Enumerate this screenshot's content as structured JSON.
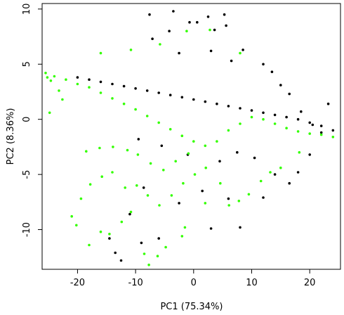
{
  "chart_data": {
    "type": "scatter",
    "title": "",
    "xlabel": "PC1 (75.34%)",
    "ylabel": "PC2 (8.36%)",
    "xlim": [
      -26.1,
      25.3
    ],
    "ylim": [
      -13.6,
      10.5
    ],
    "xticks": [
      -20,
      -10,
      0,
      10,
      20
    ],
    "yticks": [
      -10,
      -5,
      0,
      5,
      10
    ],
    "grid": false,
    "legend": "none",
    "series": [
      {
        "color": "#000000",
        "points": [
          [
            -20,
            3.8
          ],
          [
            -18,
            3.6
          ],
          [
            -16,
            3.4
          ],
          [
            -14,
            3.2
          ],
          [
            -12,
            3.0
          ],
          [
            -10,
            2.8
          ],
          [
            -8,
            2.6
          ],
          [
            -6,
            2.4
          ],
          [
            -4,
            2.2
          ],
          [
            -2,
            2.0
          ],
          [
            0,
            1.8
          ],
          [
            2,
            1.6
          ],
          [
            4,
            1.4
          ],
          [
            6,
            1.2
          ],
          [
            8,
            1.0
          ],
          [
            10,
            0.8
          ],
          [
            12,
            0.6
          ],
          [
            14,
            0.4
          ],
          [
            16,
            0.2
          ],
          [
            18,
            0.0
          ],
          [
            20,
            -0.3
          ],
          [
            22,
            -0.6
          ],
          [
            24,
            -1.0
          ],
          [
            -7.6,
            9.5
          ],
          [
            -3.5,
            9.8
          ],
          [
            2.5,
            9.3
          ],
          [
            5.3,
            9.5
          ],
          [
            -7.1,
            7.3
          ],
          [
            -4.2,
            8.0
          ],
          [
            0.6,
            8.8
          ],
          [
            3.6,
            8.1
          ],
          [
            5.6,
            8.5
          ],
          [
            -0.7,
            8.8
          ],
          [
            -2.5,
            6.0
          ],
          [
            3.0,
            6.2
          ],
          [
            6.5,
            5.3
          ],
          [
            8.5,
            6.3
          ],
          [
            12.0,
            5.0
          ],
          [
            13.5,
            4.3
          ],
          [
            15.0,
            3.1
          ],
          [
            16.5,
            2.3
          ],
          [
            18.5,
            0.7
          ],
          [
            20.5,
            -0.5
          ],
          [
            22.0,
            -1.2
          ],
          [
            23.2,
            1.4
          ],
          [
            20.0,
            -3.2
          ],
          [
            18.0,
            -4.8
          ],
          [
            16.5,
            -5.8
          ],
          [
            14.0,
            -5.0
          ],
          [
            12.0,
            -7.1
          ],
          [
            8.0,
            -9.8
          ],
          [
            6.0,
            -7.2
          ],
          [
            3.0,
            -9.9
          ],
          [
            1.5,
            -6.5
          ],
          [
            -2.5,
            -7.6
          ],
          [
            -6.0,
            -10.8
          ],
          [
            -9.0,
            -11.2
          ],
          [
            -12.5,
            -12.8
          ],
          [
            -13.5,
            -12.1
          ],
          [
            -8.6,
            -6.2
          ],
          [
            -11.0,
            -8.6
          ],
          [
            -14.5,
            -10.8
          ],
          [
            10.5,
            -3.5
          ],
          [
            7.5,
            -3.0
          ],
          [
            4.5,
            -3.8
          ],
          [
            -1.0,
            -3.2
          ],
          [
            -5.5,
            -2.4
          ],
          [
            -9.5,
            -1.8
          ]
        ]
      },
      {
        "color": "#33ff00",
        "points": [
          [
            -25.5,
            4.2
          ],
          [
            -24.0,
            3.9
          ],
          [
            -22.0,
            3.6
          ],
          [
            -20.0,
            3.2
          ],
          [
            -18.0,
            2.9
          ],
          [
            -16.0,
            2.4
          ],
          [
            -14.0,
            1.9
          ],
          [
            -12.0,
            1.4
          ],
          [
            -10.0,
            0.9
          ],
          [
            -8.0,
            0.3
          ],
          [
            -6.0,
            -0.3
          ],
          [
            -4.0,
            -0.9
          ],
          [
            -2.0,
            -1.5
          ],
          [
            0.0,
            -2.0
          ],
          [
            2.0,
            -2.4
          ],
          [
            4.0,
            -2.0
          ],
          [
            6.0,
            -1.0
          ],
          [
            8.0,
            -0.4
          ],
          [
            10.0,
            0.2
          ],
          [
            12.0,
            0.0
          ],
          [
            14.0,
            -0.4
          ],
          [
            16.0,
            -0.8
          ],
          [
            18.0,
            -1.1
          ],
          [
            20.0,
            -1.3
          ],
          [
            22.0,
            -1.4
          ],
          [
            24.0,
            -1.6
          ],
          [
            -21.0,
            -8.8
          ],
          [
            -20.2,
            -9.6
          ],
          [
            -18.0,
            -11.4
          ],
          [
            -16.0,
            -10.2
          ],
          [
            -14.5,
            -10.4
          ],
          [
            -12.4,
            -9.3
          ],
          [
            -10.8,
            -8.4
          ],
          [
            -8.5,
            -12.2
          ],
          [
            -7.7,
            -13.2
          ],
          [
            -6.2,
            -12.4
          ],
          [
            -4.8,
            -11.6
          ],
          [
            -2.0,
            -10.6
          ],
          [
            -1.5,
            -9.8
          ],
          [
            2.0,
            -7.6
          ],
          [
            4.6,
            -5.8
          ],
          [
            6.1,
            -7.8
          ],
          [
            7.8,
            -7.4
          ],
          [
            9.5,
            -6.8
          ],
          [
            11.6,
            -5.6
          ],
          [
            13.2,
            -4.8
          ],
          [
            15.0,
            -4.4
          ],
          [
            18.2,
            -3.0
          ],
          [
            -19.4,
            -7.2
          ],
          [
            -17.8,
            -5.9
          ],
          [
            -15.8,
            -5.2
          ],
          [
            -14.0,
            -4.8
          ],
          [
            -11.8,
            -6.2
          ],
          [
            -9.8,
            -6.0
          ],
          [
            -7.9,
            -6.9
          ],
          [
            -5.9,
            -7.8
          ],
          [
            -3.8,
            -6.9
          ],
          [
            -1.8,
            -5.8
          ],
          [
            0.2,
            -5.0
          ],
          [
            2.1,
            -4.4
          ],
          [
            -18.5,
            -2.9
          ],
          [
            -16.2,
            -2.6
          ],
          [
            -13.9,
            -2.5
          ],
          [
            -11.4,
            -2.8
          ],
          [
            -9.6,
            -3.2
          ],
          [
            -7.4,
            -4.0
          ],
          [
            -5.2,
            -4.6
          ],
          [
            -3.1,
            -3.8
          ],
          [
            -0.9,
            -3.1
          ],
          [
            -16.0,
            6.0
          ],
          [
            -10.8,
            6.3
          ],
          [
            -5.8,
            6.8
          ],
          [
            -1.2,
            8.0
          ],
          [
            2.8,
            8.1
          ],
          [
            8.0,
            6.0
          ],
          [
            -25.2,
            3.8
          ],
          [
            -24.6,
            3.5
          ],
          [
            -23.2,
            2.6
          ],
          [
            -22.6,
            1.8
          ],
          [
            -24.8,
            0.6
          ]
        ]
      }
    ]
  }
}
